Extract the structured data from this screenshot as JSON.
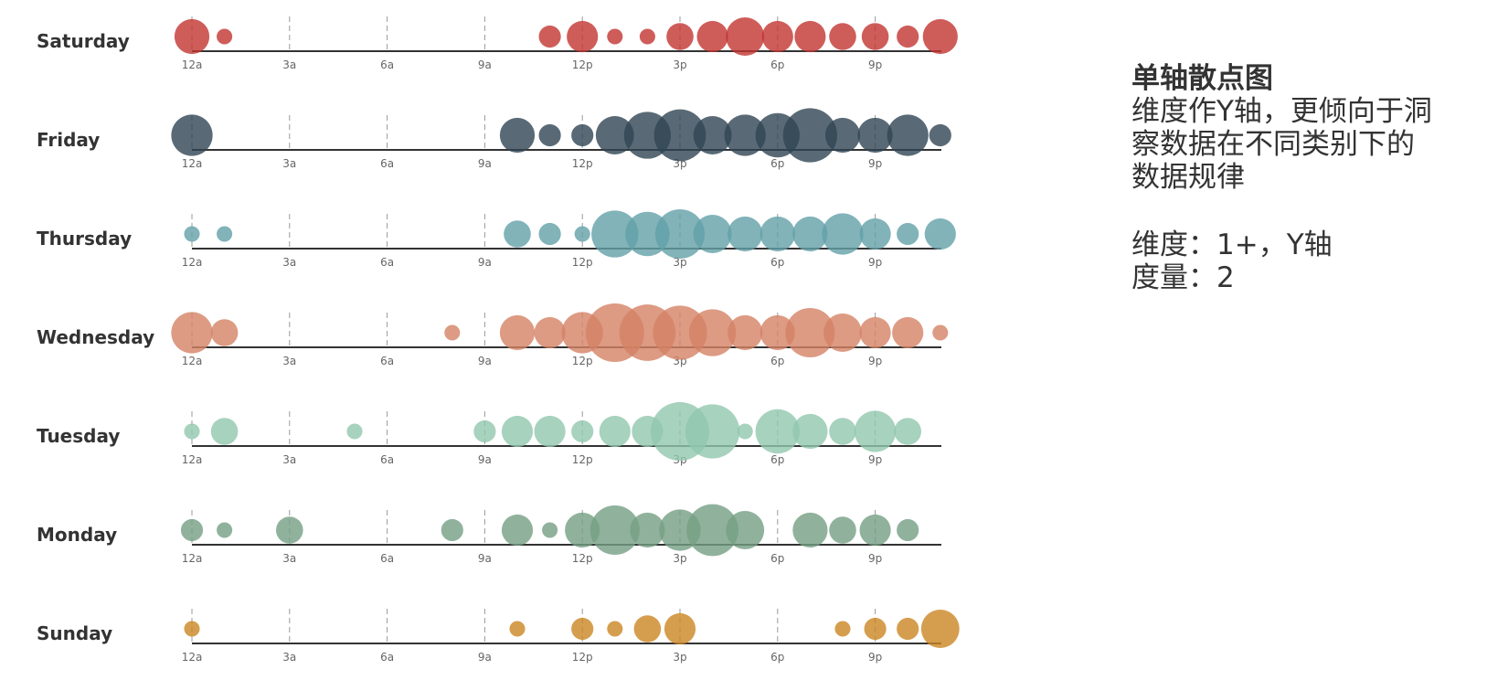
{
  "panel": {
    "title": "单轴散点图",
    "description": "维度作Y轴，更倾向于洞\n察数据在不同类别下的\n数据规律",
    "dimension_line": "维度：1+，Y轴",
    "measure_line": "度量：2"
  },
  "chart_data": {
    "type": "scatter",
    "title": "",
    "x_ticks": [
      "12a",
      "3a",
      "6a",
      "9a",
      "12p",
      "3p",
      "6p",
      "9p"
    ],
    "x_range": [
      0,
      23
    ],
    "grid": "dashed vertical lines every 3 hours",
    "categories": [
      "Saturday",
      "Friday",
      "Thursday",
      "Wednesday",
      "Tuesday",
      "Monday",
      "Sunday"
    ],
    "series": [
      {
        "name": "Saturday",
        "color": "#c23531",
        "points": [
          [
            0,
            5
          ],
          [
            1,
            1
          ],
          [
            11,
            2
          ],
          [
            12,
            4
          ],
          [
            13,
            1
          ],
          [
            14,
            1
          ],
          [
            15,
            3
          ],
          [
            16,
            4
          ],
          [
            17,
            6
          ],
          [
            18,
            4
          ],
          [
            19,
            4
          ],
          [
            20,
            3
          ],
          [
            21,
            3
          ],
          [
            22,
            2
          ],
          [
            23,
            5
          ]
        ]
      },
      {
        "name": "Friday",
        "color": "#2f4554",
        "points": [
          [
            0,
            7
          ],
          [
            10,
            5
          ],
          [
            11,
            2
          ],
          [
            12,
            2
          ],
          [
            13,
            6
          ],
          [
            14,
            9
          ],
          [
            15,
            11
          ],
          [
            16,
            6
          ],
          [
            17,
            7
          ],
          [
            18,
            8
          ],
          [
            19,
            12
          ],
          [
            20,
            5
          ],
          [
            21,
            5
          ],
          [
            22,
            7
          ],
          [
            23,
            2
          ]
        ]
      },
      {
        "name": "Thursday",
        "color": "#61a0a8",
        "points": [
          [
            0,
            1
          ],
          [
            1,
            1
          ],
          [
            10,
            3
          ],
          [
            11,
            2
          ],
          [
            12,
            1
          ],
          [
            13,
            9
          ],
          [
            14,
            8
          ],
          [
            15,
            10
          ],
          [
            16,
            6
          ],
          [
            17,
            5
          ],
          [
            18,
            5
          ],
          [
            19,
            5
          ],
          [
            20,
            7
          ],
          [
            21,
            4
          ],
          [
            22,
            2
          ],
          [
            23,
            4
          ]
        ]
      },
      {
        "name": "Wednesday",
        "color": "#d48265",
        "points": [
          [
            0,
            7
          ],
          [
            1,
            3
          ],
          [
            8,
            1
          ],
          [
            10,
            5
          ],
          [
            11,
            4
          ],
          [
            12,
            7
          ],
          [
            13,
            14
          ],
          [
            14,
            13
          ],
          [
            15,
            12
          ],
          [
            16,
            9
          ],
          [
            17,
            5
          ],
          [
            18,
            5
          ],
          [
            19,
            10
          ],
          [
            20,
            6
          ],
          [
            21,
            4
          ],
          [
            22,
            4
          ],
          [
            23,
            1
          ]
        ]
      },
      {
        "name": "Tuesday",
        "color": "#91c7ae",
        "points": [
          [
            0,
            1
          ],
          [
            1,
            3
          ],
          [
            5,
            1
          ],
          [
            9,
            2
          ],
          [
            10,
            4
          ],
          [
            11,
            4
          ],
          [
            12,
            2
          ],
          [
            13,
            4
          ],
          [
            14,
            4
          ],
          [
            15,
            14
          ],
          [
            16,
            12
          ],
          [
            17,
            1
          ],
          [
            18,
            8
          ],
          [
            19,
            5
          ],
          [
            20,
            3
          ],
          [
            21,
            7
          ],
          [
            22,
            3
          ]
        ]
      },
      {
        "name": "Monday",
        "color": "#749f83",
        "points": [
          [
            0,
            2
          ],
          [
            1,
            1
          ],
          [
            3,
            3
          ],
          [
            8,
            2
          ],
          [
            10,
            4
          ],
          [
            11,
            1
          ],
          [
            12,
            5
          ],
          [
            13,
            10
          ],
          [
            14,
            5
          ],
          [
            15,
            7
          ],
          [
            16,
            11
          ],
          [
            17,
            6
          ],
          [
            19,
            5
          ],
          [
            20,
            3
          ],
          [
            21,
            4
          ],
          [
            22,
            2
          ]
        ]
      },
      {
        "name": "Sunday",
        "color": "#ca8622",
        "points": [
          [
            0,
            1
          ],
          [
            10,
            1
          ],
          [
            12,
            2
          ],
          [
            13,
            1
          ],
          [
            14,
            3
          ],
          [
            15,
            4
          ],
          [
            20,
            1
          ],
          [
            21,
            2
          ],
          [
            22,
            2
          ],
          [
            23,
            6
          ]
        ]
      }
    ]
  }
}
